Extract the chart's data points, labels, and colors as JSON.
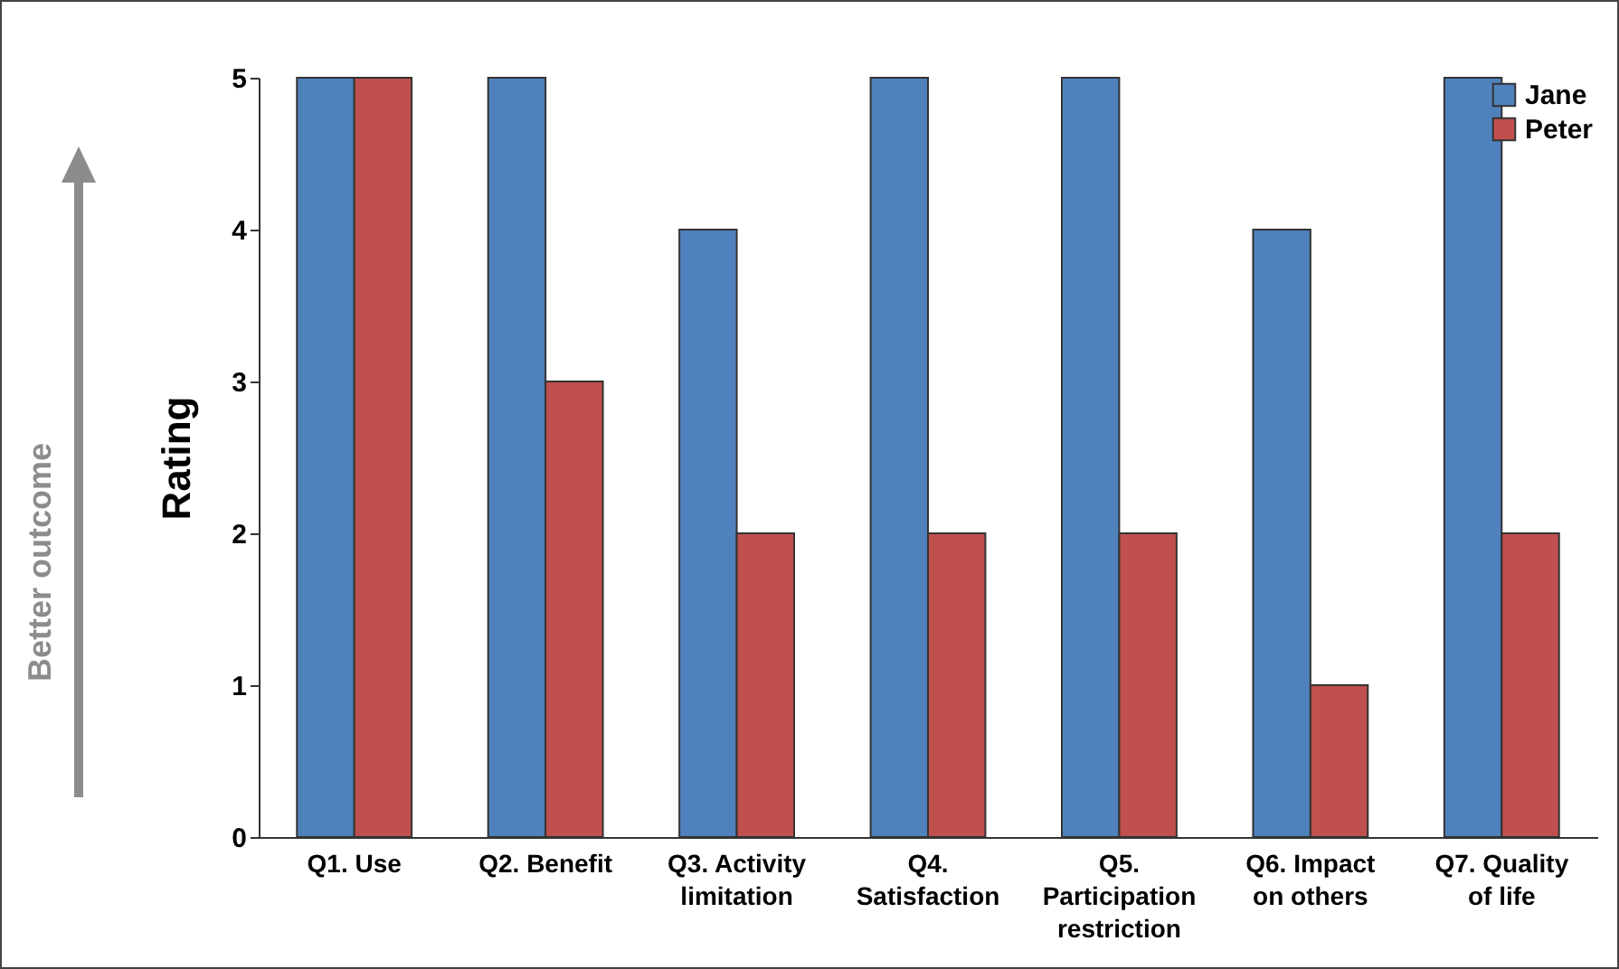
{
  "chart_data": {
    "type": "bar",
    "ylabel": "Rating",
    "categories": [
      "Q1. Use",
      "Q2. Benefit",
      "Q3. Activity limitation",
      "Q4. Satisfaction",
      "Q5. Participation restriction",
      "Q6. Impact on others",
      "Q7. Quality of life"
    ],
    "series": [
      {
        "name": "Jane",
        "color": "#4f81bd",
        "values": [
          5,
          5,
          4,
          5,
          5,
          4,
          5
        ]
      },
      {
        "name": "Peter",
        "color": "#c0504d",
        "values": [
          5,
          3,
          2,
          2,
          2,
          1,
          2
        ]
      }
    ],
    "ylim": [
      0,
      5
    ],
    "yticks": [
      0,
      1,
      2,
      3,
      4,
      5
    ],
    "grid": false,
    "legend": "top right",
    "annotations": [
      "Better outcome"
    ]
  }
}
